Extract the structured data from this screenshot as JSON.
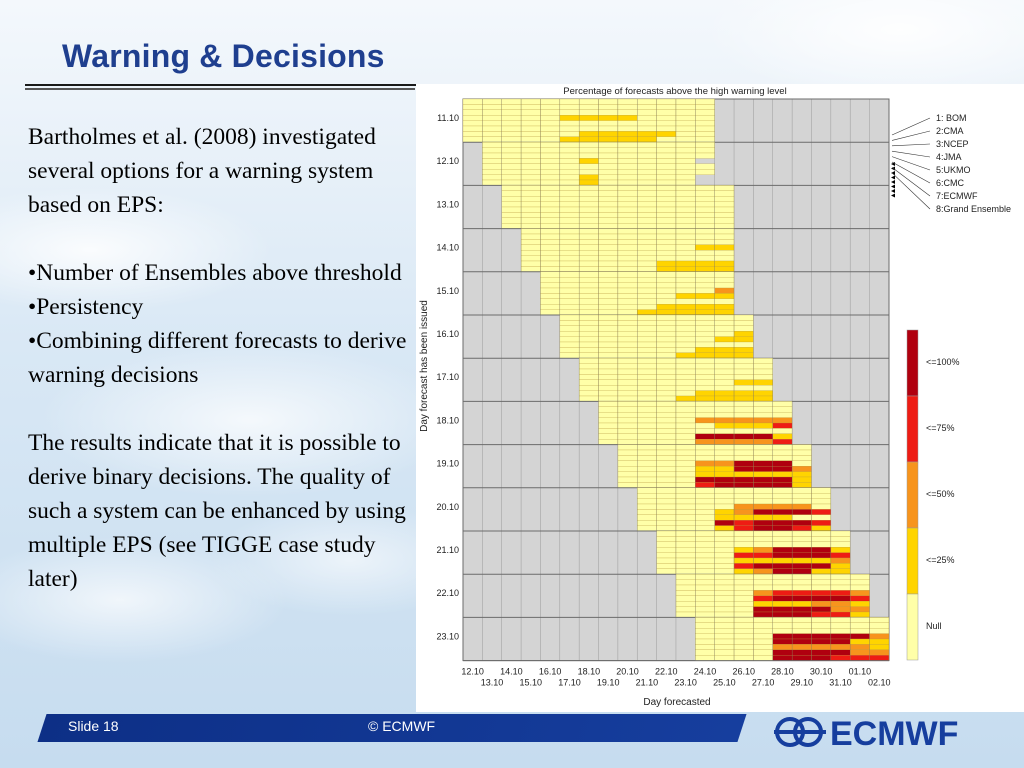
{
  "slide": {
    "title": "Warning & Decisions",
    "paragraphs": [
      "Bartholmes et al. (2008) investigated several options for a warning system based on EPS:",
      "",
      "•Number of Ensembles above threshold",
      "•Persistency",
      "•Combining different forecasts to derive warning decisions",
      "",
      "The results indicate that it is possible to derive binary decisions. The quality of such a system can be enhanced by using multiple EPS (see TIGGE case study later)"
    ],
    "footer": {
      "slide_number": "Slide 18",
      "copyright": "© ECMWF",
      "logo_text": "ECMWF"
    }
  },
  "chart_data": {
    "type": "heatmap",
    "title": "Percentage of forecasts above the high warning level",
    "xlabel": "Day forecasted",
    "ylabel": "Day forecast has been issued",
    "x_categories": [
      "12.10",
      "13.10",
      "14.10",
      "15.10",
      "16.10",
      "17.10",
      "18.10",
      "19.10",
      "20.10",
      "21.10",
      "22.10",
      "23.10",
      "24.10",
      "25.10",
      "26.10",
      "27.10",
      "28.10",
      "29.10",
      "30.10",
      "31.10",
      "01.10",
      "02.10"
    ],
    "y_categories": [
      "11.10",
      "12.10",
      "13.10",
      "14.10",
      "15.10",
      "16.10",
      "17.10",
      "18.10",
      "19.10",
      "20.10",
      "21.10",
      "22.10",
      "23.10"
    ],
    "rows_per_date": [
      "1: BOM",
      "2:CMA",
      "3:NCEP",
      "4:JMA",
      "5:UKMO",
      "6:CMC",
      "7:ECMWF",
      "8:Grand Ensemble"
    ],
    "legend": [
      "<=100%",
      "<=75%",
      "<=50%",
      "<=25%",
      "Null"
    ],
    "colors": {
      "null": "#ffffa8",
      "le25": "#ffd400",
      "le50": "#f7941d",
      "le75": "#ee1c14",
      "le100": "#b0000f",
      "missing": "#d4d4d4",
      "grid": "#6b6b6b"
    },
    "runs": [
      [
        "11.10",
        "0000000000000",
        "0000000000000",
        "0000000000000",
        "0000011110000",
        "0000000000000",
        "0000000000000",
        "0000001111100",
        "0000011111000"
      ],
      [
        "12.10",
        "000000000000",
        "000000000000",
        "000000000000",
        "00000100000",
        "000000000000",
        "000000000000",
        "00000100000",
        "00000100000"
      ],
      [
        "13.10",
        "000000000000",
        "000000000000",
        "000000000000",
        "000000000000",
        "000000000000",
        "000000000000",
        "000000000000",
        "000000000000"
      ],
      [
        "14.10",
        "00000000000",
        "00000000000",
        "00000000000",
        "00000000011",
        "00000000000",
        "00000000000",
        "00000001111",
        "00000001111"
      ],
      [
        "15.10",
        "0000000000",
        "0000000000",
        "0000000000",
        "0000000002",
        "0000000111",
        "0000000000",
        "0000001111",
        "0000011111"
      ],
      [
        "16.10",
        "0000000000",
        "0000000000",
        "0000000000",
        "0000000001",
        "0000000011",
        "0000000000",
        "0000000111",
        "0000001111"
      ],
      [
        "17.10",
        "0000000000",
        "0000000000",
        "0000000000",
        "0000000000",
        "0000000011",
        "0000000000",
        "0000001111",
        "0000011111"
      ],
      [
        "18.10",
        "0000000000",
        "0000000000",
        "0000000000",
        "0000022222",
        "0000001113",
        "0000000000",
        "0000044441",
        "0000022223"
      ],
      [
        "19.10",
        "0000000000",
        "0000000000",
        "0000000000",
        "0000224440",
        "0000114442",
        "0000111111",
        "0000444441",
        "0000344441"
      ],
      [
        "20.10",
        "0000000000",
        "0000000000",
        "0000000000",
        "0000022220",
        "0000124443",
        "0000111100",
        "0000434443",
        "0000134431"
      ],
      [
        "21.10",
        "0000000000",
        "0000000000",
        "0000000000",
        "0000124441",
        "0000334443",
        "0000111112",
        "0000344441",
        "0000124411"
      ],
      [
        "22.10",
        "0000000000",
        "0000000000",
        "0000000000",
        "0000233332",
        "0000344443",
        "0000111221",
        "0000444422",
        "0000444331"
      ],
      [
        "23.10",
        "0000000000",
        "0000000000",
        "0000000000",
        "0000444442",
        "0000444411",
        "0000222221",
        "0000444422",
        "0000444333"
      ]
    ]
  }
}
